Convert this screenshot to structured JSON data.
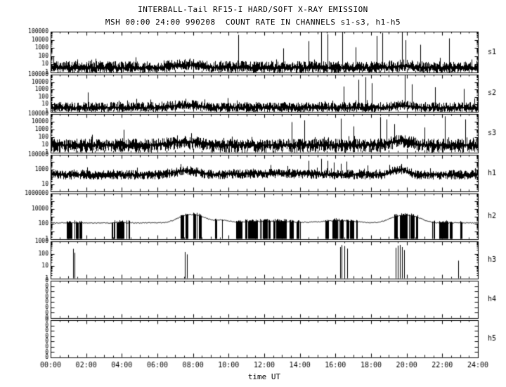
{
  "chart_data": {
    "type": "line",
    "title": "INTERBALL-Tail RF15-I HARD/SOFT X-RAY EMISSION",
    "subtitle": "MSH 00:00 24:00 990208  COUNT RATE IN CHANNELS s1-s3, h1-h5",
    "xlabel": "time UT",
    "x_range_hours": [
      0,
      24
    ],
    "x_ticks": [
      "00:00",
      "02:00",
      "04:00",
      "06:00",
      "08:00",
      "10:00",
      "12:00",
      "14:00",
      "16:00",
      "18:00",
      "20:00",
      "22:00",
      "24:00"
    ],
    "grid": false,
    "legend": "none",
    "y_scale": "log",
    "background": "#ffffff",
    "line_color": "#000000",
    "panels": [
      {
        "label": "s1",
        "y_log_range": [
          0,
          5
        ],
        "y_ticks": [
          {
            "exp": 5,
            "label": "100000"
          },
          {
            "exp": 4,
            "label": "10000"
          },
          {
            "exp": 3,
            "label": "1000"
          },
          {
            "exp": 2,
            "label": "100"
          },
          {
            "exp": 1,
            "label": "10"
          },
          {
            "exp": 0,
            "label": "1"
          }
        ],
        "trace": {
          "kind": "noise-band",
          "baseline": 3.2,
          "spread_hi": 0.75,
          "spread_lo": 0.55,
          "bumps": [
            {
              "t": 7.5,
              "amp": 2.2,
              "w": 0.6
            },
            {
              "t": 19.8,
              "amp": 1.6,
              "w": 0.4
            }
          ],
          "spikes": [
            [
              10.55,
              40000
            ],
            [
              13.05,
              900
            ],
            [
              14.5,
              7000
            ],
            [
              15.2,
              100000
            ],
            [
              15.55,
              50000
            ],
            [
              16.4,
              90000
            ],
            [
              17.15,
              1200
            ],
            [
              18.3,
              30000
            ],
            [
              18.65,
              70000
            ],
            [
              19.75,
              100000
            ],
            [
              19.95,
              9000
            ],
            [
              20.75,
              2500
            ],
            [
              22.4,
              15000
            ]
          ]
        }
      },
      {
        "label": "s2",
        "y_log_range": [
          0,
          5
        ],
        "y_ticks": [
          {
            "exp": 5,
            "label": "100000"
          },
          {
            "exp": 4,
            "label": "10000"
          },
          {
            "exp": 3,
            "label": "1000"
          },
          {
            "exp": 2,
            "label": "100"
          },
          {
            "exp": 1,
            "label": "10"
          },
          {
            "exp": 0,
            "label": "1"
          }
        ],
        "trace": {
          "kind": "noise-band",
          "baseline": 3.0,
          "spread_hi": 0.7,
          "spread_lo": 0.5,
          "bumps": [
            {
              "t": 7.5,
              "amp": 2.2,
              "w": 0.6
            },
            {
              "t": 19.8,
              "amp": 2.0,
              "w": 0.4
            }
          ],
          "spikes": [
            [
              2.1,
              400
            ],
            [
              16.45,
              2500
            ],
            [
              17.3,
              20000
            ],
            [
              17.7,
              45000
            ],
            [
              18.05,
              7000
            ],
            [
              19.9,
              80000
            ],
            [
              20.3,
              5000
            ],
            [
              21.6,
              2000
            ],
            [
              23.2,
              1200
            ]
          ]
        }
      },
      {
        "label": "s3",
        "y_log_range": [
          0,
          5
        ],
        "y_ticks": [
          {
            "exp": 5,
            "label": "100000"
          },
          {
            "exp": 4,
            "label": "10000"
          },
          {
            "exp": 3,
            "label": "1000"
          },
          {
            "exp": 2,
            "label": "100"
          },
          {
            "exp": 1,
            "label": "10"
          },
          {
            "exp": 0,
            "label": "1"
          }
        ],
        "trace": {
          "kind": "noise-band",
          "baseline": 8,
          "spread_hi": 0.75,
          "spread_lo": 0.9,
          "bumps": [
            {
              "t": 7.5,
              "amp": 2.8,
              "w": 0.6
            },
            {
              "t": 19.6,
              "amp": 3.5,
              "w": 0.45
            }
          ],
          "spikes": [
            [
              4.1,
              900
            ],
            [
              13.55,
              9000
            ],
            [
              14.25,
              15000
            ],
            [
              16.3,
              25000
            ],
            [
              17.0,
              2500
            ],
            [
              18.5,
              40000
            ],
            [
              18.85,
              20000
            ],
            [
              19.3,
              5000
            ],
            [
              21.0,
              1800
            ],
            [
              22.15,
              50000
            ],
            [
              23.3,
              20000
            ]
          ]
        }
      },
      {
        "label": "h1",
        "y_log_range": [
          0,
          5
        ],
        "y_ticks": [
          {
            "exp": 5,
            "label": "100000"
          },
          {
            "exp": 3,
            "label": "1000"
          },
          {
            "exp": 1,
            "label": "10"
          }
        ],
        "trace": {
          "kind": "noise-band",
          "baseline": 160,
          "spread_hi": 0.55,
          "spread_lo": 0.6,
          "bumps": [
            {
              "t": 7.6,
              "amp": 3.5,
              "w": 0.5
            },
            {
              "t": 19.6,
              "amp": 5,
              "w": 0.35
            },
            {
              "t": 12.5,
              "amp": 1.5,
              "w": 2.0
            }
          ],
          "spikes": [
            [
              12.35,
              4000
            ],
            [
              14.5,
              15000
            ],
            [
              15.2,
              28000
            ],
            [
              15.55,
              15000
            ],
            [
              15.9,
              9000
            ],
            [
              16.3,
              6000
            ],
            [
              16.6,
              12000
            ],
            [
              17.8,
              3500
            ]
          ]
        }
      },
      {
        "label": "h2",
        "y_log_range": [
          0,
          6
        ],
        "y_ticks": [
          {
            "exp": 6,
            "label": "1000000"
          },
          {
            "exp": 4,
            "label": "10000"
          },
          {
            "exp": 2,
            "label": "100"
          },
          {
            "exp": 0,
            "label": "1"
          }
        ],
        "trace": {
          "kind": "line-with-dropouts",
          "base": 140,
          "noise": 0.12,
          "bumps": [
            {
              "t": 7.9,
              "amp": 12,
              "w": 0.5
            },
            {
              "t": 19.9,
              "amp": 10,
              "w": 0.55
            },
            {
              "t": 9.6,
              "amp": 2.2,
              "w": 0.35
            },
            {
              "t": 16.2,
              "amp": 2.0,
              "w": 0.8
            },
            {
              "t": 12.2,
              "amp": 1.6,
              "w": 1.2
            }
          ],
          "dropouts": [
            [
              0.92,
              1.18
            ],
            [
              1.3,
              1.52
            ],
            [
              1.62,
              1.78
            ],
            [
              3.42,
              3.58
            ],
            [
              3.72,
              4.12
            ],
            [
              4.28,
              4.42
            ],
            [
              7.3,
              7.48
            ],
            [
              7.58,
              7.68
            ],
            [
              8.02,
              8.22
            ],
            [
              8.32,
              8.44
            ],
            [
              9.22,
              9.32
            ],
            [
              9.62,
              9.68
            ],
            [
              10.42,
              10.72
            ],
            [
              10.92,
              11.62
            ],
            [
              11.78,
              12.32
            ],
            [
              12.5,
              13.22
            ],
            [
              13.42,
              13.62
            ],
            [
              13.82,
              14.02
            ],
            [
              15.42,
              15.62
            ],
            [
              15.82,
              16.42
            ],
            [
              16.62,
              17.02
            ],
            [
              17.12,
              17.22
            ],
            [
              19.32,
              19.46
            ],
            [
              19.62,
              20.02
            ],
            [
              20.12,
              20.42
            ],
            [
              20.52,
              20.62
            ],
            [
              21.42,
              21.56
            ],
            [
              21.82,
              22.32
            ],
            [
              22.42,
              22.52
            ],
            [
              23.02,
              23.08
            ]
          ]
        }
      },
      {
        "label": "h3",
        "y_log_range": [
          0,
          3
        ],
        "y_ticks": [
          {
            "exp": 3,
            "label": "1000"
          },
          {
            "exp": 2,
            "label": "100"
          },
          {
            "exp": 1,
            "label": "10"
          },
          {
            "exp": 0,
            "label": "1"
          }
        ],
        "trace": {
          "kind": "spikes",
          "spikes": [
            [
              1.28,
              250
            ],
            [
              1.36,
              120
            ],
            [
              7.55,
              140
            ],
            [
              7.66,
              90
            ],
            [
              16.25,
              350
            ],
            [
              16.36,
              500
            ],
            [
              16.5,
              420
            ],
            [
              16.64,
              260
            ],
            [
              19.38,
              300
            ],
            [
              19.5,
              450
            ],
            [
              19.62,
              520
            ],
            [
              19.72,
              350
            ],
            [
              19.86,
              200
            ],
            [
              22.88,
              28
            ]
          ]
        }
      },
      {
        "label": "h4",
        "y_zero_ticks": 8,
        "trace": {
          "kind": "empty"
        }
      },
      {
        "label": "h5",
        "y_zero_ticks": 8,
        "trace": {
          "kind": "empty"
        }
      }
    ]
  }
}
